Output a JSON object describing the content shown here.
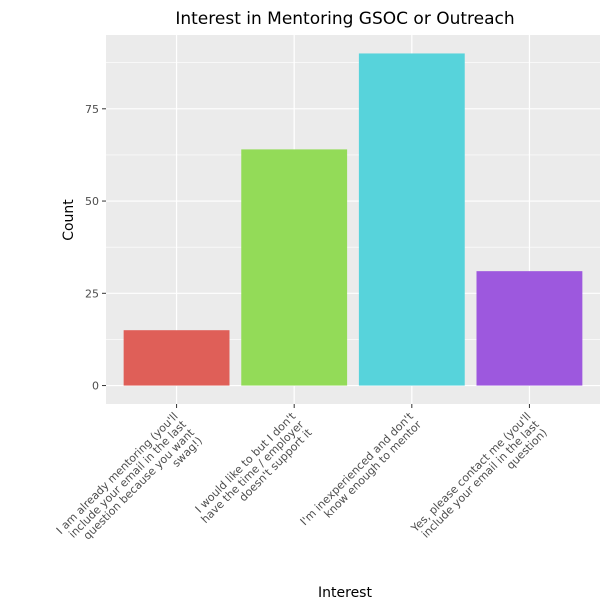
{
  "chart_data": {
    "type": "bar",
    "title": "Interest in Mentoring GSOC or Outreach",
    "xlabel": "Interest",
    "ylabel": "Count",
    "ylim": [
      -5,
      95
    ],
    "yticks": [
      0,
      25,
      50,
      75
    ],
    "grid": true,
    "categories": [
      [
        "I am already mentoring (you'll",
        "include your email in the last",
        "question because you want",
        "swag!)"
      ],
      [
        "I would like to but I don't",
        "have the time / employer",
        "doesn't support it"
      ],
      [
        "I'm inexperienced and don't",
        "know enough to mentor"
      ],
      [
        "Yes, please contact me (you'll",
        "include your email in the last",
        "question)"
      ]
    ],
    "values": [
      15,
      64,
      90,
      31
    ],
    "colors": [
      "#df5f58",
      "#93db58",
      "#57d3db",
      "#9d58de"
    ]
  }
}
